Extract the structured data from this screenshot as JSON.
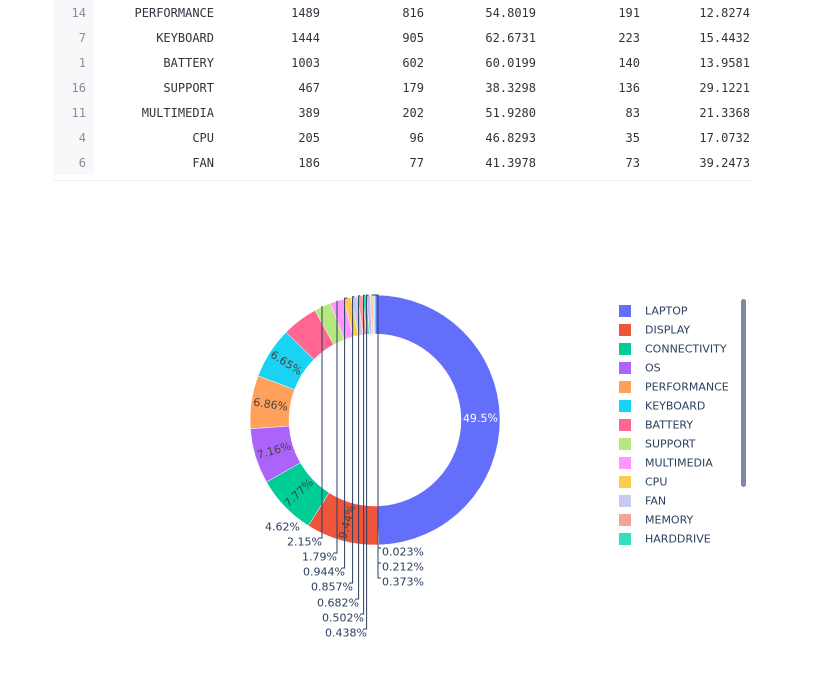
{
  "table": {
    "rows": [
      {
        "idx": "14",
        "name": "PERFORMANCE",
        "c1": "1489",
        "c2": "816",
        "c3": "54.8019",
        "c4": "191",
        "c5": "12.8274"
      },
      {
        "idx": "7",
        "name": "KEYBOARD",
        "c1": "1444",
        "c2": "905",
        "c3": "62.6731",
        "c4": "223",
        "c5": "15.4432"
      },
      {
        "idx": "1",
        "name": "BATTERY",
        "c1": "1003",
        "c2": "602",
        "c3": "60.0199",
        "c4": "140",
        "c5": "13.9581"
      },
      {
        "idx": "16",
        "name": "SUPPORT",
        "c1": "467",
        "c2": "179",
        "c3": "38.3298",
        "c4": "136",
        "c5": "29.1221"
      },
      {
        "idx": "11",
        "name": "MULTIMEDIA",
        "c1": "389",
        "c2": "202",
        "c3": "51.9280",
        "c4": "83",
        "c5": "21.3368"
      },
      {
        "idx": "4",
        "name": "CPU",
        "c1": "205",
        "c2": "96",
        "c3": "46.8293",
        "c4": "35",
        "c5": "17.0732"
      },
      {
        "idx": "6",
        "name": "FAN",
        "c1": "186",
        "c2": "77",
        "c3": "41.3978",
        "c4": "73",
        "c5": "39.2473"
      }
    ]
  },
  "chart_data": {
    "type": "pie",
    "hole": true,
    "labels": [
      "LAPTOP",
      "DISPLAY",
      "CONNECTIVITY",
      "OS",
      "PERFORMANCE",
      "KEYBOARD",
      "BATTERY",
      "SUPPORT",
      "MULTIMEDIA",
      "CPU",
      "FAN",
      "MEMORY",
      "HARDDRIVE",
      "",
      "",
      "",
      ""
    ],
    "values": [
      49.5,
      9.44,
      7.77,
      7.16,
      6.86,
      6.65,
      4.62,
      2.15,
      1.79,
      0.944,
      0.857,
      0.682,
      0.502,
      0.438,
      0.373,
      0.212,
      0.023
    ],
    "text_labels": [
      "49.5%",
      "9.44%",
      "7.77%",
      "7.16%",
      "6.86%",
      "6.65%",
      "4.62%",
      "2.15%",
      "1.79%",
      "0.944%",
      "0.857%",
      "0.682%",
      "0.502%",
      "0.438%",
      "0.373%",
      "0.212%",
      "0.023%"
    ],
    "colors": [
      "#636efa",
      "#ef553b",
      "#00cc96",
      "#ab63fa",
      "#ffa15a",
      "#19d3f3",
      "#ff6692",
      "#b6e880",
      "#ff97ff",
      "#fecb52",
      "#c9cbee",
      "#f2a39a",
      "#33e0bd",
      "#c6b6fb",
      "#ffcaa6",
      "#7fe4f4",
      "#ffb2c8"
    ],
    "legend": [
      "LAPTOP",
      "DISPLAY",
      "CONNECTIVITY",
      "OS",
      "PERFORMANCE",
      "KEYBOARD",
      "BATTERY",
      "SUPPORT",
      "MULTIMEDIA",
      "CPU",
      "FAN",
      "MEMORY",
      "HARDDRIVE"
    ],
    "legend_position": "right",
    "direction": "clockwise"
  }
}
